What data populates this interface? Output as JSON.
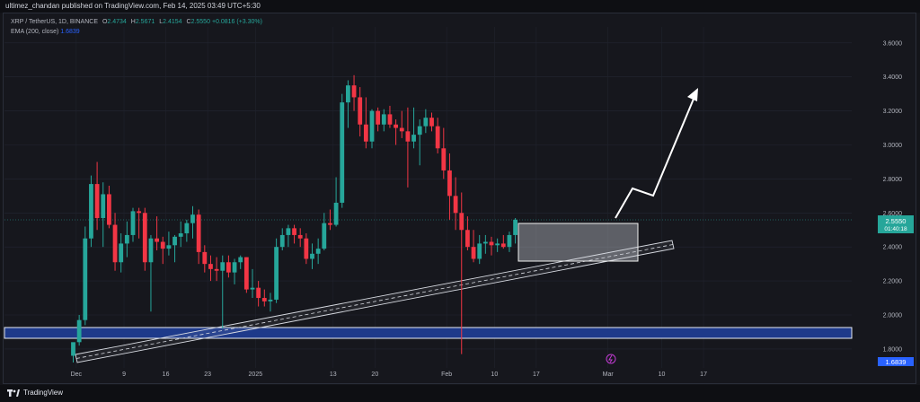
{
  "header": {
    "published_by": "ultimez_chandan published on TradingView.com, Feb 14, 2025 03:49 UTC+5:30"
  },
  "legend": {
    "symbol": "XRP / TetherUS, 1D, BINANCE",
    "o_label": "O",
    "o_value": "2.4734",
    "h_label": "H",
    "h_value": "2.5671",
    "l_label": "L",
    "l_value": "2.4154",
    "c_label": "C",
    "c_value": "2.5550",
    "change": "+0.0816 (+3.30%)",
    "ema_label": "EMA (200, close)",
    "ema_value": "1.6839"
  },
  "footer": {
    "brand": "TradingView"
  },
  "colors": {
    "up": "#26a69a",
    "down": "#f23645",
    "ema": "#2962ff",
    "zone": "#1e3a8a",
    "background": "#16171d"
  },
  "chart_data": {
    "type": "candlestick",
    "title": "XRP / TetherUS, 1D, BINANCE",
    "ylim": [
      1.6839,
      3.7
    ],
    "y_ticks": [
      1.8,
      2.0,
      2.2,
      2.4,
      2.6,
      2.8,
      3.0,
      3.2,
      3.4,
      3.6
    ],
    "y_tick_labels": [
      "1.8000",
      "2.0000",
      "2.2000",
      "2.4000",
      "2.6000",
      "2.8000",
      "3.0000",
      "3.2000",
      "3.4000",
      "3.6000"
    ],
    "x_labels": [
      {
        "d": 0.5,
        "t": "Dec"
      },
      {
        "d": 8.5,
        "t": "9"
      },
      {
        "d": 15.5,
        "t": "16"
      },
      {
        "d": 22.5,
        "t": "23"
      },
      {
        "d": 30.5,
        "t": "2025"
      },
      {
        "d": 43.5,
        "t": "13"
      },
      {
        "d": 50.5,
        "t": "20"
      },
      {
        "d": 62.5,
        "t": "Feb"
      },
      {
        "d": 70.5,
        "t": "10"
      },
      {
        "d": 77.5,
        "t": "17"
      },
      {
        "d": 89.5,
        "t": "Mar"
      },
      {
        "d": 98.5,
        "t": "10"
      },
      {
        "d": 105.5,
        "t": "17"
      }
    ],
    "price_label": "2.5550",
    "countdown": "01:40:18",
    "ema_label": "1.6839",
    "candles": [
      {
        "o": 1.76,
        "h": 1.83,
        "l": 1.72,
        "c": 1.84
      },
      {
        "o": 1.84,
        "h": 2.0,
        "l": 1.82,
        "c": 1.97
      },
      {
        "o": 1.97,
        "h": 2.52,
        "l": 1.94,
        "c": 2.45
      },
      {
        "o": 2.45,
        "h": 2.82,
        "l": 2.4,
        "c": 2.77
      },
      {
        "o": 2.77,
        "h": 2.9,
        "l": 2.5,
        "c": 2.57
      },
      {
        "o": 2.57,
        "h": 2.78,
        "l": 2.4,
        "c": 2.71
      },
      {
        "o": 2.71,
        "h": 2.76,
        "l": 2.51,
        "c": 2.53
      },
      {
        "o": 2.53,
        "h": 2.6,
        "l": 2.26,
        "c": 2.31
      },
      {
        "o": 2.31,
        "h": 2.48,
        "l": 2.25,
        "c": 2.42
      },
      {
        "o": 2.42,
        "h": 2.55,
        "l": 2.34,
        "c": 2.47
      },
      {
        "o": 2.47,
        "h": 2.63,
        "l": 2.43,
        "c": 2.61
      },
      {
        "o": 2.61,
        "h": 2.63,
        "l": 2.45,
        "c": 2.6
      },
      {
        "o": 2.6,
        "h": 2.63,
        "l": 2.26,
        "c": 2.31
      },
      {
        "o": 2.31,
        "h": 2.47,
        "l": 2.02,
        "c": 2.45
      },
      {
        "o": 2.45,
        "h": 2.58,
        "l": 2.38,
        "c": 2.43
      },
      {
        "o": 2.43,
        "h": 2.46,
        "l": 2.3,
        "c": 2.39
      },
      {
        "o": 2.39,
        "h": 2.49,
        "l": 2.35,
        "c": 2.41
      },
      {
        "o": 2.41,
        "h": 2.47,
        "l": 2.31,
        "c": 2.46
      },
      {
        "o": 2.46,
        "h": 2.55,
        "l": 2.4,
        "c": 2.48
      },
      {
        "o": 2.48,
        "h": 2.56,
        "l": 2.43,
        "c": 2.54
      },
      {
        "o": 2.54,
        "h": 2.64,
        "l": 2.45,
        "c": 2.59
      },
      {
        "o": 2.59,
        "h": 2.62,
        "l": 2.3,
        "c": 2.37
      },
      {
        "o": 2.37,
        "h": 2.41,
        "l": 2.25,
        "c": 2.3
      },
      {
        "o": 2.3,
        "h": 2.35,
        "l": 2.2,
        "c": 2.27
      },
      {
        "o": 2.27,
        "h": 2.34,
        "l": 2.2,
        "c": 2.26
      },
      {
        "o": 2.26,
        "h": 2.35,
        "l": 1.92,
        "c": 2.31
      },
      {
        "o": 2.31,
        "h": 2.35,
        "l": 2.22,
        "c": 2.25
      },
      {
        "o": 2.25,
        "h": 2.33,
        "l": 2.18,
        "c": 2.31
      },
      {
        "o": 2.31,
        "h": 2.35,
        "l": 2.27,
        "c": 2.34
      },
      {
        "o": 2.34,
        "h": 2.34,
        "l": 2.13,
        "c": 2.15
      },
      {
        "o": 2.15,
        "h": 2.27,
        "l": 2.1,
        "c": 2.16
      },
      {
        "o": 2.16,
        "h": 2.2,
        "l": 2.05,
        "c": 2.1
      },
      {
        "o": 2.1,
        "h": 2.15,
        "l": 2.05,
        "c": 2.08
      },
      {
        "o": 2.08,
        "h": 2.13,
        "l": 2.02,
        "c": 2.09
      },
      {
        "o": 2.09,
        "h": 2.45,
        "l": 2.07,
        "c": 2.4
      },
      {
        "o": 2.4,
        "h": 2.51,
        "l": 2.38,
        "c": 2.47
      },
      {
        "o": 2.47,
        "h": 2.53,
        "l": 2.4,
        "c": 2.51
      },
      {
        "o": 2.51,
        "h": 2.53,
        "l": 2.42,
        "c": 2.47
      },
      {
        "o": 2.47,
        "h": 2.51,
        "l": 2.4,
        "c": 2.45
      },
      {
        "o": 2.45,
        "h": 2.48,
        "l": 2.3,
        "c": 2.33
      },
      {
        "o": 2.33,
        "h": 2.42,
        "l": 2.27,
        "c": 2.36
      },
      {
        "o": 2.36,
        "h": 2.45,
        "l": 2.3,
        "c": 2.39
      },
      {
        "o": 2.39,
        "h": 2.6,
        "l": 2.38,
        "c": 2.54
      },
      {
        "o": 2.54,
        "h": 2.62,
        "l": 2.5,
        "c": 2.53
      },
      {
        "o": 2.53,
        "h": 2.81,
        "l": 2.52,
        "c": 2.66
      },
      {
        "o": 2.66,
        "h": 3.3,
        "l": 2.63,
        "c": 3.25
      },
      {
        "o": 3.25,
        "h": 3.38,
        "l": 3.1,
        "c": 3.35
      },
      {
        "o": 3.35,
        "h": 3.41,
        "l": 3.2,
        "c": 3.28
      },
      {
        "o": 3.28,
        "h": 3.34,
        "l": 3.05,
        "c": 3.12
      },
      {
        "o": 3.12,
        "h": 3.28,
        "l": 2.98,
        "c": 3.02
      },
      {
        "o": 3.02,
        "h": 3.21,
        "l": 2.98,
        "c": 3.2
      },
      {
        "o": 3.2,
        "h": 3.22,
        "l": 3.08,
        "c": 3.12
      },
      {
        "o": 3.12,
        "h": 3.21,
        "l": 3.08,
        "c": 3.18
      },
      {
        "o": 3.18,
        "h": 3.23,
        "l": 3.1,
        "c": 3.12
      },
      {
        "o": 3.12,
        "h": 3.15,
        "l": 3.0,
        "c": 3.1
      },
      {
        "o": 3.1,
        "h": 3.2,
        "l": 3.04,
        "c": 3.08
      },
      {
        "o": 3.08,
        "h": 3.22,
        "l": 2.75,
        "c": 3.02
      },
      {
        "o": 3.02,
        "h": 3.22,
        "l": 2.98,
        "c": 3.06
      },
      {
        "o": 3.06,
        "h": 3.15,
        "l": 2.88,
        "c": 3.11
      },
      {
        "o": 3.11,
        "h": 3.21,
        "l": 3.07,
        "c": 3.16
      },
      {
        "o": 3.16,
        "h": 3.19,
        "l": 3.08,
        "c": 3.11
      },
      {
        "o": 3.11,
        "h": 3.16,
        "l": 2.95,
        "c": 2.98
      },
      {
        "o": 2.98,
        "h": 3.1,
        "l": 2.8,
        "c": 2.85
      },
      {
        "o": 2.85,
        "h": 2.95,
        "l": 2.56,
        "c": 2.7
      },
      {
        "o": 2.7,
        "h": 2.81,
        "l": 2.5,
        "c": 2.6
      },
      {
        "o": 2.6,
        "h": 2.72,
        "l": 1.77,
        "c": 2.5
      },
      {
        "o": 2.5,
        "h": 2.58,
        "l": 2.38,
        "c": 2.4
      },
      {
        "o": 2.4,
        "h": 2.5,
        "l": 2.31,
        "c": 2.33
      },
      {
        "o": 2.33,
        "h": 2.47,
        "l": 2.3,
        "c": 2.42
      },
      {
        "o": 2.42,
        "h": 2.47,
        "l": 2.36,
        "c": 2.43
      },
      {
        "o": 2.43,
        "h": 2.46,
        "l": 2.35,
        "c": 2.41
      },
      {
        "o": 2.41,
        "h": 2.45,
        "l": 2.37,
        "c": 2.42
      },
      {
        "o": 2.42,
        "h": 2.47,
        "l": 2.39,
        "c": 2.4
      },
      {
        "o": 2.4,
        "h": 2.49,
        "l": 2.37,
        "c": 2.47
      },
      {
        "o": 2.47,
        "h": 2.57,
        "l": 2.42,
        "c": 2.56
      }
    ]
  }
}
